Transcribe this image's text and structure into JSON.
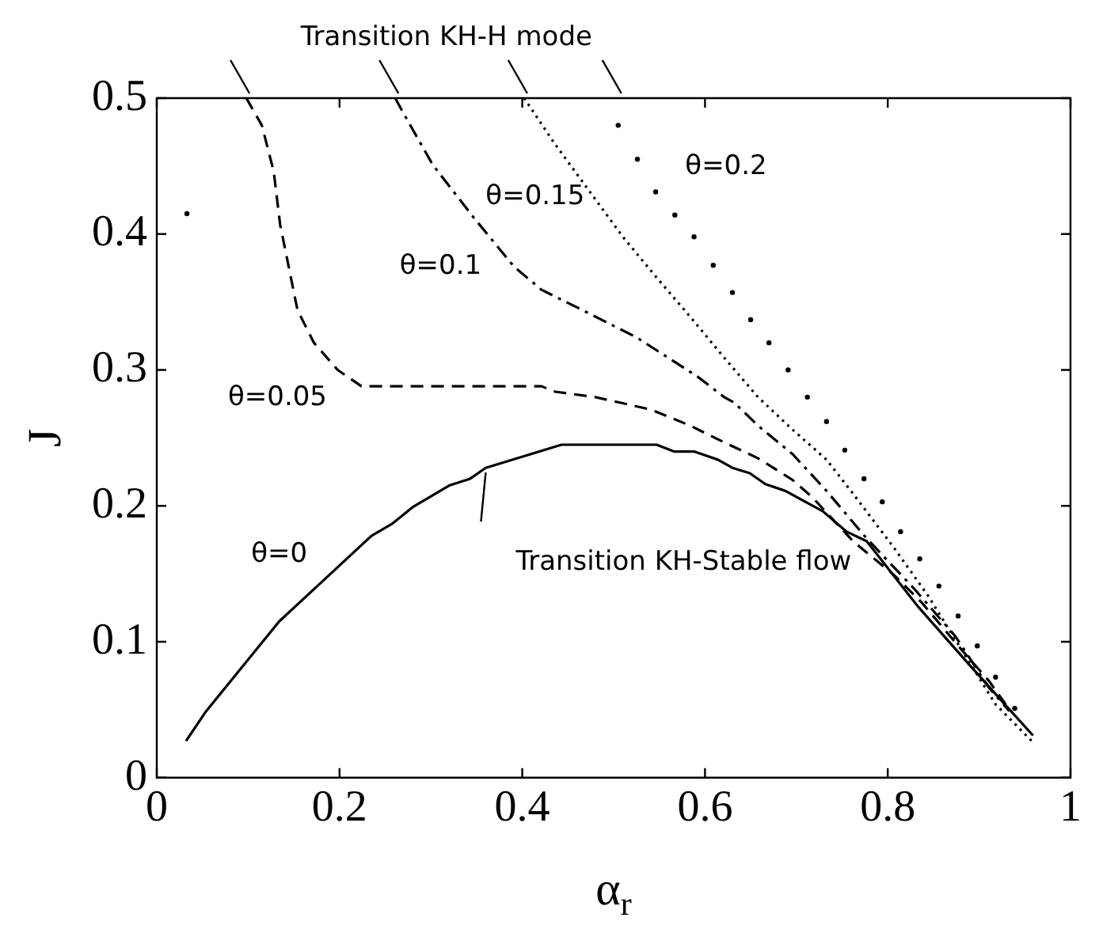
{
  "chart_data": {
    "type": "line",
    "xlabel": "α$_{r}$",
    "ylabel": "J",
    "xlim": [
      0,
      1
    ],
    "ylim": [
      0,
      0.5
    ],
    "xticks": [
      0,
      0.2,
      0.4,
      0.6,
      0.8,
      1
    ],
    "yticks": [
      0,
      0.1,
      0.2,
      0.3,
      0.4,
      0.5
    ],
    "grid": false,
    "legend": false,
    "series": [
      {
        "name": "θ=0",
        "line_style": "solid",
        "color": "#000000",
        "x": [
          0.032,
          0.053,
          0.134,
          0.235,
          0.258,
          0.28,
          0.32,
          0.343,
          0.36,
          0.443,
          0.547,
          0.566,
          0.588,
          0.614,
          0.63,
          0.649,
          0.666,
          0.688,
          0.729,
          0.755,
          0.777,
          0.833,
          0.892,
          0.959
        ],
        "values": [
          0.027,
          0.048,
          0.115,
          0.178,
          0.187,
          0.199,
          0.215,
          0.22,
          0.228,
          0.245,
          0.245,
          0.24,
          0.24,
          0.234,
          0.228,
          0.224,
          0.216,
          0.211,
          0.196,
          0.181,
          0.174,
          0.126,
          0.081,
          0.031
        ]
      },
      {
        "name": "θ=0.05",
        "line_style": "dashed",
        "color": "#000000",
        "x": [
          0.098,
          0.115,
          0.128,
          0.135,
          0.154,
          0.172,
          0.198,
          0.224,
          0.421,
          0.436,
          0.48,
          0.54,
          0.584,
          0.614,
          0.658,
          0.696,
          0.718,
          0.762,
          0.807,
          0.837,
          0.881,
          0.911,
          0.929
        ],
        "values": [
          0.5,
          0.48,
          0.446,
          0.407,
          0.344,
          0.32,
          0.3,
          0.288,
          0.288,
          0.284,
          0.28,
          0.271,
          0.259,
          0.249,
          0.235,
          0.219,
          0.206,
          0.174,
          0.149,
          0.129,
          0.094,
          0.071,
          0.054
        ]
      },
      {
        "name": "θ=0.1",
        "line_style": "dashdot",
        "color": "#000000",
        "x": [
          0.261,
          0.269,
          0.302,
          0.347,
          0.391,
          0.421,
          0.466,
          0.525,
          0.569,
          0.592,
          0.621,
          0.632,
          0.658,
          0.696,
          0.733,
          0.777,
          0.829,
          0.874,
          0.911,
          0.933
        ],
        "values": [
          0.5,
          0.49,
          0.451,
          0.412,
          0.376,
          0.359,
          0.344,
          0.324,
          0.305,
          0.295,
          0.28,
          0.276,
          0.259,
          0.238,
          0.211,
          0.176,
          0.139,
          0.104,
          0.066,
          0.049
        ]
      },
      {
        "name": "θ=0.15",
        "line_style": "dotted",
        "color": "#000000",
        "x": [
          0.402,
          0.436,
          0.473,
          0.51,
          0.547,
          0.584,
          0.621,
          0.658,
          0.696,
          0.733,
          0.762,
          0.807,
          0.844,
          0.881,
          0.918,
          0.959
        ],
        "values": [
          0.5,
          0.466,
          0.432,
          0.398,
          0.368,
          0.339,
          0.309,
          0.28,
          0.256,
          0.234,
          0.209,
          0.169,
          0.134,
          0.094,
          0.054,
          0.026
        ]
      },
      {
        "name": "θ=0.2",
        "type": "scatter",
        "marker": "circle",
        "color": "#000000",
        "x": [
          0.505,
          0.526,
          0.546,
          0.567,
          0.588,
          0.609,
          0.63,
          0.65,
          0.67,
          0.691,
          0.712,
          0.733,
          0.753,
          0.774,
          0.794,
          0.814,
          0.835,
          0.856,
          0.877,
          0.898,
          0.918,
          0.939
        ],
        "values": [
          0.48,
          0.455,
          0.431,
          0.414,
          0.398,
          0.377,
          0.357,
          0.337,
          0.32,
          0.3,
          0.28,
          0.262,
          0.241,
          0.22,
          0.203,
          0.181,
          0.161,
          0.141,
          0.119,
          0.097,
          0.074,
          0.051
        ]
      },
      {
        "type": "scatter",
        "marker": "circle",
        "color": "#000000",
        "x": [
          0.033
        ],
        "values": [
          0.415
        ]
      }
    ],
    "annotations": [
      "Transition KH-H mode",
      "Transition KH-Stable flow"
    ]
  }
}
